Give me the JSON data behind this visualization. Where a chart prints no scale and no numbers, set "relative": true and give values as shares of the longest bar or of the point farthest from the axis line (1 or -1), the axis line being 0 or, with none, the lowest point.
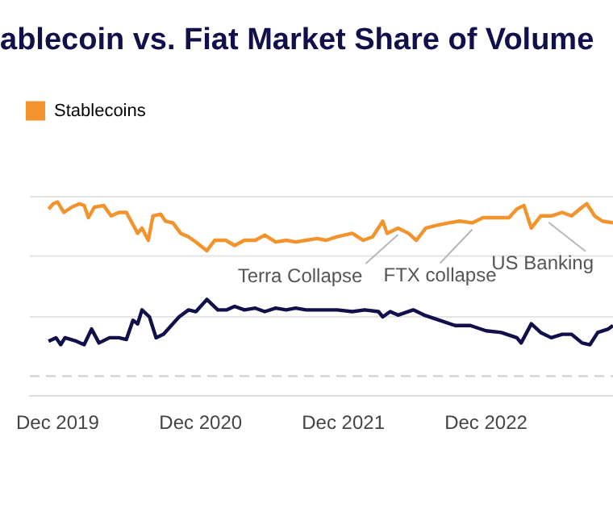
{
  "chart_data": {
    "type": "line",
    "title": "ablecoin vs. Fiat Market Share of Volume",
    "relative": true,
    "legend": "top left",
    "ref_lines": [
      {
        "axis": "y",
        "value": 0,
        "color": "#cccccc",
        "line_style": "dashed"
      },
      {
        "axis": "y",
        "value": 0.34,
        "color": "#e4e4e4"
      },
      {
        "axis": "y",
        "value": 0.69,
        "color": "#e4e4e4"
      },
      {
        "axis": "y",
        "value": 1.03,
        "color": "#e4e4e4"
      }
    ],
    "marker": "none",
    "line_style": "solid",
    "xlim": [
      "2019-09-21",
      "2023-10-22"
    ],
    "xticks": [
      {
        "value": "2019-12-01",
        "label": "Dec 2019"
      },
      {
        "value": "2020-12-01",
        "label": "Dec 2020"
      },
      {
        "value": "2021-12-01",
        "label": "Dec 2021"
      },
      {
        "value": "2022-12-01",
        "label": "Dec 2022"
      }
    ],
    "series": [
      {
        "name": "Stablecoins",
        "color": "#f3932c",
        "x": [
          "2019-11-08",
          "2019-11-20",
          "2019-12-01",
          "2019-12-17",
          "2020-01-06",
          "2020-01-26",
          "2020-02-07",
          "2020-02-18",
          "2020-03-04",
          "2020-03-28",
          "2020-04-16",
          "2020-05-06",
          "2020-05-25",
          "2020-06-11",
          "2020-06-23",
          "2020-07-04",
          "2020-07-20",
          "2020-08-01",
          "2020-08-21",
          "2020-09-02",
          "2020-09-21",
          "2020-10-11",
          "2020-10-31",
          "2020-11-19",
          "2020-12-17",
          "2021-01-06",
          "2021-02-03",
          "2021-02-26",
          "2021-03-23",
          "2021-04-20",
          "2021-05-14",
          "2021-06-11",
          "2021-07-08",
          "2021-08-01",
          "2021-08-28",
          "2021-09-25",
          "2021-10-18",
          "2021-11-15",
          "2021-12-24",
          "2022-01-21",
          "2022-02-14",
          "2022-03-12",
          "2022-03-23",
          "2022-04-20",
          "2022-05-17",
          "2022-06-06",
          "2022-06-30",
          "2022-08-05",
          "2022-08-28",
          "2022-09-25",
          "2022-10-27",
          "2022-11-23",
          "2022-12-24",
          "2023-01-29",
          "2023-02-18",
          "2023-03-08",
          "2023-03-27",
          "2023-04-20",
          "2023-05-17",
          "2023-06-14",
          "2023-07-08",
          "2023-08-04",
          "2023-08-16",
          "2023-09-05",
          "2023-09-25",
          "2023-10-22"
        ],
        "values": [
          0.96,
          0.99,
          1.0,
          0.94,
          0.97,
          0.99,
          0.98,
          0.91,
          0.97,
          0.98,
          0.92,
          0.94,
          0.94,
          0.87,
          0.82,
          0.85,
          0.78,
          0.92,
          0.93,
          0.89,
          0.88,
          0.82,
          0.8,
          0.77,
          0.72,
          0.78,
          0.78,
          0.75,
          0.78,
          0.78,
          0.81,
          0.77,
          0.78,
          0.77,
          0.78,
          0.79,
          0.78,
          0.8,
          0.82,
          0.78,
          0.8,
          0.89,
          0.82,
          0.85,
          0.82,
          0.78,
          0.85,
          0.87,
          0.88,
          0.89,
          0.88,
          0.91,
          0.91,
          0.91,
          0.96,
          0.98,
          0.85,
          0.92,
          0.92,
          0.94,
          0.92,
          0.97,
          0.99,
          0.92,
          0.89,
          0.88
        ]
      },
      {
        "color": "#10104a",
        "x": [
          "2019-11-08",
          "2019-11-27",
          "2019-12-09",
          "2019-12-20",
          "2020-01-18",
          "2020-02-07",
          "2020-02-26",
          "2020-03-16",
          "2020-04-12",
          "2020-05-06",
          "2020-05-25",
          "2020-06-11",
          "2020-06-23",
          "2020-07-04",
          "2020-07-23",
          "2020-08-09",
          "2020-08-28",
          "2020-09-17",
          "2020-10-07",
          "2020-10-31",
          "2020-11-19",
          "2020-12-17",
          "2021-01-14",
          "2021-02-06",
          "2021-02-26",
          "2021-03-23",
          "2021-04-20",
          "2021-05-14",
          "2021-06-11",
          "2021-07-08",
          "2021-08-01",
          "2021-08-28",
          "2021-09-25",
          "2021-10-18",
          "2021-11-15",
          "2021-12-24",
          "2022-01-25",
          "2022-03-01",
          "2022-03-12",
          "2022-03-31",
          "2022-04-20",
          "2022-05-29",
          "2022-06-26",
          "2022-08-05",
          "2022-09-13",
          "2022-10-22",
          "2022-12-01",
          "2023-01-09",
          "2023-02-18",
          "2023-03-01",
          "2023-03-27",
          "2023-04-20",
          "2023-05-17",
          "2023-06-14",
          "2023-07-08",
          "2023-08-04",
          "2023-08-24",
          "2023-09-13",
          "2023-10-10",
          "2023-10-22"
        ],
        "values": [
          0.2,
          0.22,
          0.18,
          0.22,
          0.2,
          0.18,
          0.27,
          0.19,
          0.22,
          0.22,
          0.21,
          0.32,
          0.3,
          0.38,
          0.34,
          0.22,
          0.24,
          0.29,
          0.34,
          0.38,
          0.37,
          0.44,
          0.38,
          0.38,
          0.4,
          0.38,
          0.39,
          0.37,
          0.39,
          0.38,
          0.39,
          0.38,
          0.38,
          0.38,
          0.38,
          0.37,
          0.38,
          0.37,
          0.34,
          0.37,
          0.35,
          0.38,
          0.35,
          0.32,
          0.29,
          0.29,
          0.26,
          0.25,
          0.22,
          0.19,
          0.3,
          0.25,
          0.22,
          0.24,
          0.24,
          0.19,
          0.18,
          0.25,
          0.27,
          0.29
        ]
      }
    ],
    "annotations": [
      {
        "text": "Terra Collapse",
        "x": "2022-04-20",
        "y": 0.85
      },
      {
        "text": "FTX collapse",
        "x": "2022-10-27",
        "y": 0.88
      },
      {
        "text": "US Banking",
        "x": "2023-05-10",
        "y": 0.92
      }
    ]
  }
}
